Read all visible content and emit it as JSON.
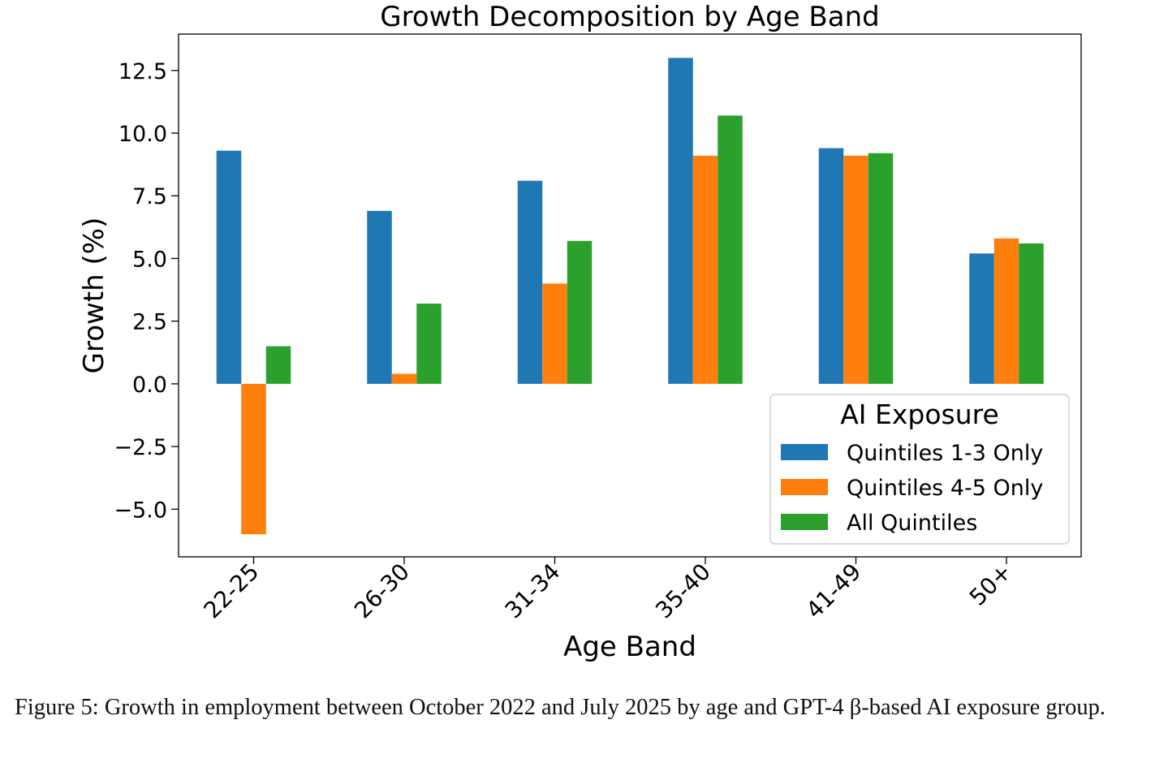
{
  "chart_data": {
    "type": "bar",
    "title": "Growth Decomposition by Age Band",
    "xlabel": "Age Band",
    "ylabel": "Growth (%)",
    "categories": [
      "22-25",
      "26-30",
      "31-34",
      "35-40",
      "41-49",
      "50+"
    ],
    "series": [
      {
        "name": "Quintiles 1-3 Only",
        "color": "#1f77b4",
        "values": [
          9.3,
          6.9,
          8.1,
          13.0,
          9.4,
          5.2
        ]
      },
      {
        "name": "Quintiles 4-5 Only",
        "color": "#ff7f0e",
        "values": [
          -6.0,
          0.4,
          4.0,
          9.1,
          9.1,
          5.8
        ]
      },
      {
        "name": "All Quintiles",
        "color": "#2ca02c",
        "values": [
          1.5,
          3.2,
          5.7,
          10.7,
          9.2,
          5.6
        ]
      }
    ],
    "ylim": [
      -6.9,
      13.95
    ],
    "yticks": [
      -5.0,
      -2.5,
      0.0,
      2.5,
      5.0,
      7.5,
      10.0,
      12.5
    ],
    "ytick_labels": [
      "−5.0",
      "−2.5",
      "0.0",
      "2.5",
      "5.0",
      "7.5",
      "10.0",
      "12.5"
    ],
    "legend": {
      "title": "AI Exposure",
      "location": "lower-right"
    },
    "grid": false
  },
  "caption": "Figure 5: Growth in employment between October 2022 and July 2025 by age and GPT-4 β-based AI exposure group."
}
